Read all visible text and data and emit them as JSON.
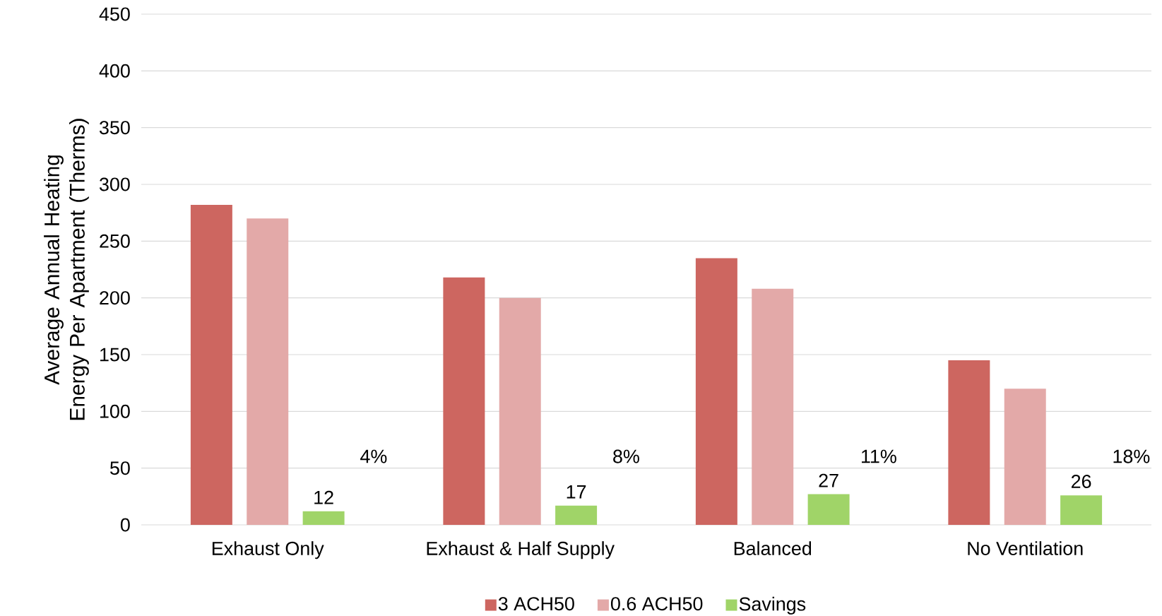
{
  "chart_data": {
    "type": "bar",
    "ylabel": "Average Annual Heating Energy Per Apartment (Therms)",
    "categories": [
      "Exhaust Only",
      "Exhaust & Half Supply",
      "Balanced",
      "No Ventilation"
    ],
    "series": [
      {
        "name": "3 ACH50",
        "color": "#cd6660",
        "values": [
          282,
          218,
          235,
          145
        ]
      },
      {
        "name": "0.6 ACH50",
        "color": "#e3a9a8",
        "values": [
          270,
          200,
          208,
          120
        ]
      },
      {
        "name": "Savings",
        "color": "#a0d468",
        "values": [
          12,
          17,
          27,
          26
        ],
        "value_labels": [
          "12",
          "17",
          "27",
          "26"
        ]
      }
    ],
    "annotations": [
      "4%",
      "8%",
      "11%",
      "18%"
    ],
    "ylim": [
      0,
      450
    ],
    "yticks": [
      0,
      50,
      100,
      150,
      200,
      250,
      300,
      350,
      400,
      450
    ],
    "grid": "y",
    "legend": "bottom"
  }
}
